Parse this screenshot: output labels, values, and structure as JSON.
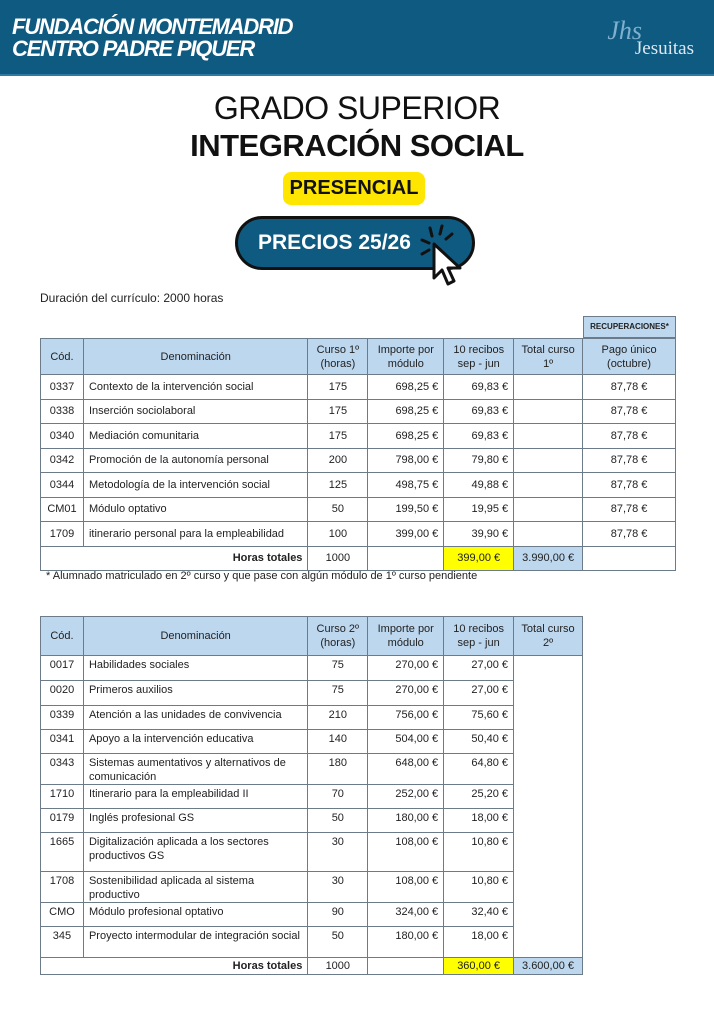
{
  "header": {
    "org_line1": "FUNDACIÓN MONTEMADRID",
    "org_line2": "CENTRO PADRE PIQUER",
    "logo_right": "Jesuitas",
    "brand_color": "#0f5a80"
  },
  "title": {
    "line1": "GRADO SUPERIOR",
    "line2": "INTEGRACIÓN SOCIAL",
    "modality": "PRESENCIAL",
    "prices": "PRECIOS 25/26"
  },
  "duration": "Duración del currículo: 2000 horas",
  "table1": {
    "recuperaciones": "RECUPERACIONES*",
    "headers": [
      "Cód.",
      "Denominación",
      "Curso 1º (horas)",
      "Importe por módulo",
      "10 recibos sep - jun",
      "Total curso 1º",
      "Pago único (octubre)"
    ],
    "rows": [
      [
        "0337",
        "Contexto de la intervención social",
        "175",
        "698,25 €",
        "69,83 €",
        "",
        "87,78 €"
      ],
      [
        "0338",
        "Inserción sociolaboral",
        "175",
        "698,25 €",
        "69,83 €",
        "",
        "87,78 €"
      ],
      [
        "0340",
        "Mediación comunitaria",
        "175",
        "698,25 €",
        "69,83 €",
        "",
        "87,78 €"
      ],
      [
        "0342",
        "Promoción de la autonomía personal",
        "200",
        "798,00 €",
        "79,80 €",
        "",
        "87,78 €"
      ],
      [
        "0344",
        "Metodología de la intervención social",
        "125",
        "498,75 €",
        "49,88 €",
        "",
        "87,78 €"
      ],
      [
        "CM01",
        "Módulo optativo",
        "50",
        "199,50 €",
        "19,95 €",
        "",
        "87,78 €"
      ],
      [
        "1709",
        "itinerario personal para la empleabilidad",
        "100",
        "399,00 €",
        "39,90 €",
        "",
        "87,78 €"
      ]
    ],
    "totals": {
      "label": "Horas totales",
      "hours": "1000",
      "monthly": "399,00 €",
      "total": "3.990,00 €"
    }
  },
  "footnote": "* Alumnado matriculado en 2º curso y que pase con algún módulo de 1º curso pendiente",
  "table2": {
    "headers": [
      "Cód.",
      "Denominación",
      "Curso 2º (horas)",
      "Importe por módulo",
      "10 recibos sep - jun",
      "Total curso 2º"
    ],
    "rows": [
      [
        "0017",
        "Habilidades sociales",
        "75",
        "270,00 €",
        "27,00 €"
      ],
      [
        "0020",
        "Primeros auxilios",
        "75",
        "270,00 €",
        "27,00 €"
      ],
      [
        "0339",
        "Atención a las unidades de convivencia",
        "210",
        "756,00 €",
        "75,60 €"
      ],
      [
        "0341",
        "Apoyo a la intervención educativa",
        "140",
        "504,00 €",
        "50,40 €"
      ],
      [
        "0343",
        "Sistemas aumentativos y alternativos de comunicación",
        "180",
        "648,00 €",
        "64,80 €"
      ],
      [
        "1710",
        "Itinerario para la empleabilidad II",
        "70",
        "252,00 €",
        "25,20 €"
      ],
      [
        "0179",
        "Inglés profesional GS",
        "50",
        "180,00 €",
        "18,00 €"
      ],
      [
        "1665",
        "Digitalización aplicada a los sectores productivos GS",
        "30",
        "108,00 €",
        "10,80 €"
      ],
      [
        "1708",
        "Sostenibilidad aplicada al sistema productivo",
        "30",
        "108,00 €",
        "10,80 €"
      ],
      [
        "CMO",
        "Módulo profesional optativo",
        "90",
        "324,00 €",
        "32,40 €"
      ],
      [
        "345",
        "Proyecto intermodular de integración social",
        "50",
        "180,00 €",
        "18,00 €"
      ]
    ],
    "totals": {
      "label": "Horas totales",
      "hours": "1000",
      "monthly": "360,00 €",
      "total": "3.600,00 €"
    }
  }
}
